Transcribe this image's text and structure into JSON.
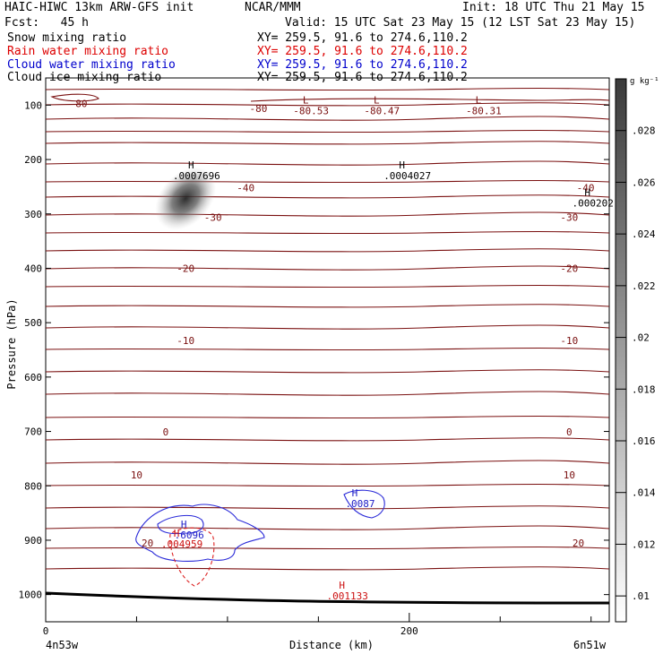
{
  "header": {
    "title": "HAIC-HIWC 13km ARW-GFS init",
    "org": "NCAR/MMM",
    "init": "Init: 18 UTC Thu 21 May 15",
    "fcst": "Fcst:   45 h",
    "valid": "Valid: 15 UTC Sat 23 May 15 (12 LST Sat 23 May 15)"
  },
  "fields": [
    {
      "label": "Snow mixing ratio",
      "xy": "XY= 259.5, 91.6 to 274.6,110.2",
      "color": "#000000"
    },
    {
      "label": "Rain water mixing ratio",
      "xy": "XY= 259.5, 91.6 to 274.6,110.2",
      "color": "#dd0000"
    },
    {
      "label": "Cloud water mixing ratio",
      "xy": "XY= 259.5, 91.6 to 274.6,110.2",
      "color": "#0000cc"
    },
    {
      "label": "Cloud ice mixing ratio",
      "xy": "XY= 259.5, 91.6 to 274.6,110.2",
      "color": "#000000"
    }
  ],
  "colorbar": {
    "unit": "g kg⁻¹",
    "ticks": [
      ".01",
      ".012",
      ".014",
      ".016",
      ".018",
      ".02",
      ".022",
      ".024",
      ".026",
      ".028"
    ],
    "vmin": 0.009,
    "vmax": 0.03
  },
  "chart_data": {
    "type": "contour",
    "xlabel": "Distance (km)",
    "ylabel": "Pressure (hPa)",
    "xlim": [
      0,
      310
    ],
    "ylim": [
      1050,
      50
    ],
    "x_ticks": [
      0,
      200
    ],
    "y_ticks": [
      100,
      200,
      300,
      400,
      500,
      600,
      700,
      800,
      900,
      1000
    ],
    "x_left_label": "4n53w",
    "x_right_label": "6n51w",
    "temperature_isotherms": [
      {
        "label": "-80",
        "x": 18,
        "p": 97
      },
      {
        "label": "-80",
        "x": 117,
        "p": 106
      },
      {
        "label": "-40",
        "x": 110,
        "p": 252
      },
      {
        "label": "-40",
        "x": 297,
        "p": 252
      },
      {
        "label": "-30",
        "x": 92,
        "p": 306
      },
      {
        "label": "-30",
        "x": 288,
        "p": 306
      },
      {
        "label": "-20",
        "x": 77,
        "p": 400
      },
      {
        "label": "-20",
        "x": 288,
        "p": 400
      },
      {
        "label": "-10",
        "x": 77,
        "p": 533
      },
      {
        "label": "-10",
        "x": 288,
        "p": 533
      },
      {
        "label": "0",
        "x": 66,
        "p": 701
      },
      {
        "label": "0",
        "x": 288,
        "p": 701
      },
      {
        "label": "10",
        "x": 50,
        "p": 780
      },
      {
        "label": "10",
        "x": 288,
        "p": 780
      },
      {
        "label": "20",
        "x": 56,
        "p": 905
      },
      {
        "label": "20",
        "x": 293,
        "p": 905
      }
    ],
    "extrema": [
      {
        "type": "L",
        "value": "-80.53",
        "x": 143,
        "p": 100,
        "series": "temperature"
      },
      {
        "type": "L",
        "value": "-80.47",
        "x": 182,
        "p": 100,
        "series": "temperature"
      },
      {
        "type": "L",
        "value": "-80.31",
        "x": 238,
        "p": 100,
        "series": "temperature"
      },
      {
        "type": "H",
        "value": ".0007696",
        "x": 80,
        "p": 220,
        "series": "cloud ice"
      },
      {
        "type": "H",
        "value": ".0004027",
        "x": 196,
        "p": 220,
        "series": "cloud ice"
      },
      {
        "type": "H",
        "value": ".000202",
        "x": 298,
        "p": 270,
        "series": "cloud ice"
      },
      {
        "type": "H",
        "value": ".6096",
        "x": 76,
        "p": 880,
        "series": "cloud water"
      },
      {
        "type": "H",
        "value": ".0087",
        "x": 170,
        "p": 823,
        "series": "cloud water"
      },
      {
        "type": "H",
        "value": ".004959",
        "x": 72,
        "p": 897,
        "series": "rain water"
      },
      {
        "type": "H",
        "value": ".001133",
        "x": 163,
        "p": 992,
        "series": "rain water"
      }
    ],
    "shaded_maximum": {
      "field": "cloud ice",
      "x": 76,
      "p": 285,
      "value": 0.028
    }
  }
}
